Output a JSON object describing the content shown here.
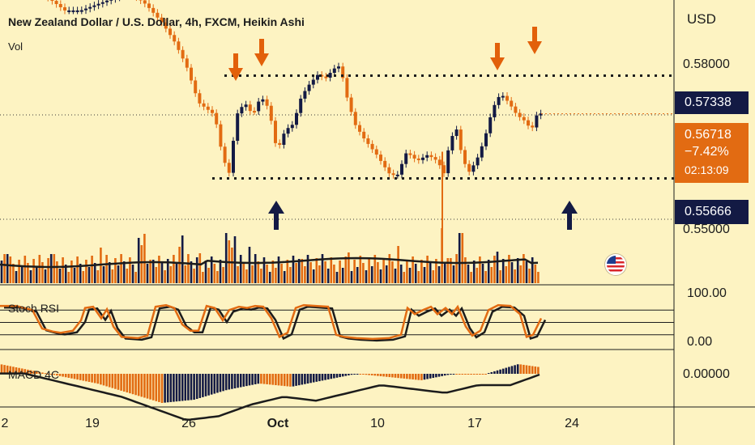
{
  "header": {
    "title": "New Zealand Dollar / U.S. Dollar, 4h, FXCM, Heikin Ashi",
    "volume_label": "Vol",
    "currency": "USD"
  },
  "panes": {
    "stoch_label": "Stoch RSI",
    "macd_label": "MACD 4C"
  },
  "price_axis": {
    "ticks": [
      "0.58000",
      "0.55000"
    ],
    "stoch_ticks": [
      "100.00",
      "0.00"
    ],
    "macd_ticks": [
      "0.00000"
    ]
  },
  "price_boxes": {
    "resistance": "0.57338",
    "last_price": "0.56718",
    "change": "−7.42%",
    "countdown": "02:13:09",
    "support": "0.55666"
  },
  "time_axis": [
    "2",
    "19",
    "26",
    "Oct",
    "10",
    "17",
    "24"
  ],
  "colors": {
    "background": "#fdf3c2",
    "bull_candle": "#131a44",
    "bear_candle": "#e26b12",
    "arrow_orange": "#e2600a",
    "arrow_navy": "#131a44",
    "label_navy": "#131a44",
    "label_orange": "#e26b12"
  },
  "chart_data": {
    "type": "candlestick",
    "title": "New Zealand Dollar / U.S. Dollar, 4h, FXCM, Heikin Ashi",
    "ylabel": "USD",
    "price_range": [
      0.5475,
      0.5857
    ],
    "levels": {
      "resistance": 0.57338,
      "support": 0.55666,
      "last": 0.56718
    },
    "price_path": [
      [
        0,
        0.591
      ],
      [
        20,
        0.59
      ],
      [
        40,
        0.588
      ],
      [
        60,
        0.586
      ],
      [
        80,
        0.584
      ],
      [
        100,
        0.584
      ],
      [
        120,
        0.585
      ],
      [
        140,
        0.586
      ],
      [
        160,
        0.587
      ],
      [
        180,
        0.585
      ],
      [
        200,
        0.582
      ],
      [
        215,
        0.579
      ],
      [
        230,
        0.575
      ],
      [
        245,
        0.569
      ],
      [
        255,
        0.568
      ],
      [
        265,
        0.567
      ],
      [
        275,
        0.56
      ],
      [
        283,
        0.5575
      ],
      [
        292,
        0.567
      ],
      [
        302,
        0.569
      ],
      [
        312,
        0.567
      ],
      [
        322,
        0.57
      ],
      [
        332,
        0.568
      ],
      [
        342,
        0.561
      ],
      [
        352,
        0.5645
      ],
      [
        362,
        0.5655
      ],
      [
        372,
        0.57
      ],
      [
        382,
        0.572
      ],
      [
        392,
        0.5735
      ],
      [
        402,
        0.573
      ],
      [
        412,
        0.5745
      ],
      [
        420,
        0.575
      ],
      [
        428,
        0.57
      ],
      [
        438,
        0.5655
      ],
      [
        450,
        0.563
      ],
      [
        465,
        0.5605
      ],
      [
        480,
        0.5575
      ],
      [
        490,
        0.557
      ],
      [
        502,
        0.561
      ],
      [
        515,
        0.5595
      ],
      [
        528,
        0.5605
      ],
      [
        540,
        0.5595
      ],
      [
        548,
        0.5575
      ],
      [
        555,
        0.5625
      ],
      [
        563,
        0.565
      ],
      [
        570,
        0.5605
      ],
      [
        578,
        0.5575
      ],
      [
        588,
        0.5595
      ],
      [
        598,
        0.563
      ],
      [
        608,
        0.568
      ],
      [
        618,
        0.5705
      ],
      [
        628,
        0.569
      ],
      [
        638,
        0.567
      ],
      [
        648,
        0.566
      ],
      [
        656,
        0.5645
      ],
      [
        664,
        0.5675
      ],
      [
        668,
        0.5672
      ]
    ],
    "volume_level": "typical ~0.5 of pane height with spikes near 2, 27, Oct 1 and 14",
    "stoch_rsi_range": [
      0,
      100
    ],
    "stoch_rsi_path": [
      [
        0,
        90
      ],
      [
        20,
        90
      ],
      [
        40,
        80
      ],
      [
        52,
        35
      ],
      [
        65,
        28
      ],
      [
        75,
        25
      ],
      [
        90,
        30
      ],
      [
        100,
        55
      ],
      [
        105,
        85
      ],
      [
        115,
        88
      ],
      [
        125,
        60
      ],
      [
        132,
        82
      ],
      [
        140,
        40
      ],
      [
        150,
        15
      ],
      [
        170,
        12
      ],
      [
        182,
        18
      ],
      [
        192,
        88
      ],
      [
        205,
        92
      ],
      [
        215,
        85
      ],
      [
        225,
        45
      ],
      [
        235,
        30
      ],
      [
        245,
        30
      ],
      [
        255,
        90
      ],
      [
        265,
        85
      ],
      [
        275,
        55
      ],
      [
        283,
        80
      ],
      [
        295,
        88
      ],
      [
        305,
        85
      ],
      [
        315,
        90
      ],
      [
        325,
        88
      ],
      [
        335,
        60
      ],
      [
        345,
        15
      ],
      [
        355,
        25
      ],
      [
        365,
        85
      ],
      [
        375,
        92
      ],
      [
        390,
        90
      ],
      [
        405,
        88
      ],
      [
        415,
        20
      ],
      [
        425,
        15
      ],
      [
        440,
        12
      ],
      [
        460,
        10
      ],
      [
        480,
        12
      ],
      [
        495,
        20
      ],
      [
        503,
        85
      ],
      [
        512,
        70
      ],
      [
        522,
        80
      ],
      [
        532,
        88
      ],
      [
        540,
        70
      ],
      [
        550,
        85
      ],
      [
        558,
        70
      ],
      [
        565,
        88
      ],
      [
        575,
        40
      ],
      [
        583,
        18
      ],
      [
        593,
        30
      ],
      [
        603,
        80
      ],
      [
        615,
        92
      ],
      [
        630,
        90
      ],
      [
        642,
        70
      ],
      [
        650,
        15
      ],
      [
        658,
        20
      ],
      [
        668,
        60
      ]
    ],
    "macd_path": [
      [
        0,
        0.0003
      ],
      [
        40,
        0.0001
      ],
      [
        80,
        -0.0001
      ],
      [
        120,
        -0.0003
      ],
      [
        160,
        -0.0006
      ],
      [
        200,
        -0.0009
      ],
      [
        240,
        -0.0008
      ],
      [
        280,
        -0.0005
      ],
      [
        320,
        -0.0003
      ],
      [
        360,
        -0.0004
      ],
      [
        400,
        -0.0002
      ],
      [
        440,
        0.0
      ],
      [
        480,
        -0.0001
      ],
      [
        520,
        -0.0002
      ],
      [
        560,
        0.0
      ],
      [
        600,
        0.0
      ],
      [
        640,
        0.0003
      ],
      [
        668,
        0.0002
      ]
    ],
    "annotations": [
      "down arrows at four resistance touches",
      "up arrows at two support touches"
    ]
  }
}
